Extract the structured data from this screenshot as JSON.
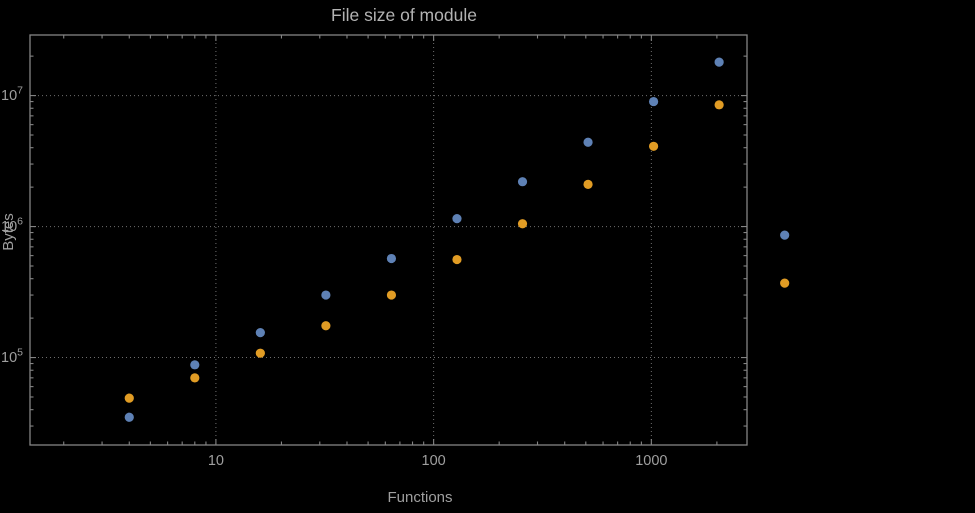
{
  "title": "File size of module",
  "axis_labels": {
    "x": "Functions",
    "y": "Bytes"
  },
  "axes": {
    "x_tick_labels": [
      "10",
      "100",
      "1000"
    ],
    "y_tick_labels": [
      "10^5",
      "10^6",
      "10^7"
    ]
  },
  "colors": {
    "background": "#000000",
    "frame": "#848484",
    "grid": "#6f6f6f",
    "tick_text": "#9f9f9f",
    "title_text": "#b3b3b3",
    "label_text": "#9f9f9f",
    "blue": "#5e81b5",
    "orange": "#e19c24"
  },
  "chart_data": {
    "type": "scatter",
    "title": "File size of module",
    "xlabel": "Functions",
    "ylabel": "Bytes",
    "x_scale": "log",
    "y_scale": "log",
    "grid": "dotted gray gridlines at decades",
    "legend": "none",
    "x": [
      4,
      8,
      16,
      32,
      64,
      128,
      256,
      512,
      1024,
      2048,
      4096
    ],
    "series": [
      {
        "name": "blue",
        "color": "#5e81b5",
        "values": [
          35000,
          88000,
          155000,
          300000,
          570000,
          1150000,
          2200000,
          4400000,
          9000000,
          18000000,
          860000
        ]
      },
      {
        "name": "orange",
        "color": "#e19c24",
        "values": [
          49000,
          70000,
          108000,
          175000,
          300000,
          560000,
          1050000,
          2100000,
          4100000,
          8500000,
          370000
        ]
      }
    ],
    "x_axis_range": [
      1.4,
      2750
    ],
    "y_axis_range": [
      21500,
      29000000
    ],
    "x_major_ticks": [
      10,
      100,
      1000
    ],
    "y_major_ticks": [
      100000,
      1000000,
      10000000
    ]
  }
}
